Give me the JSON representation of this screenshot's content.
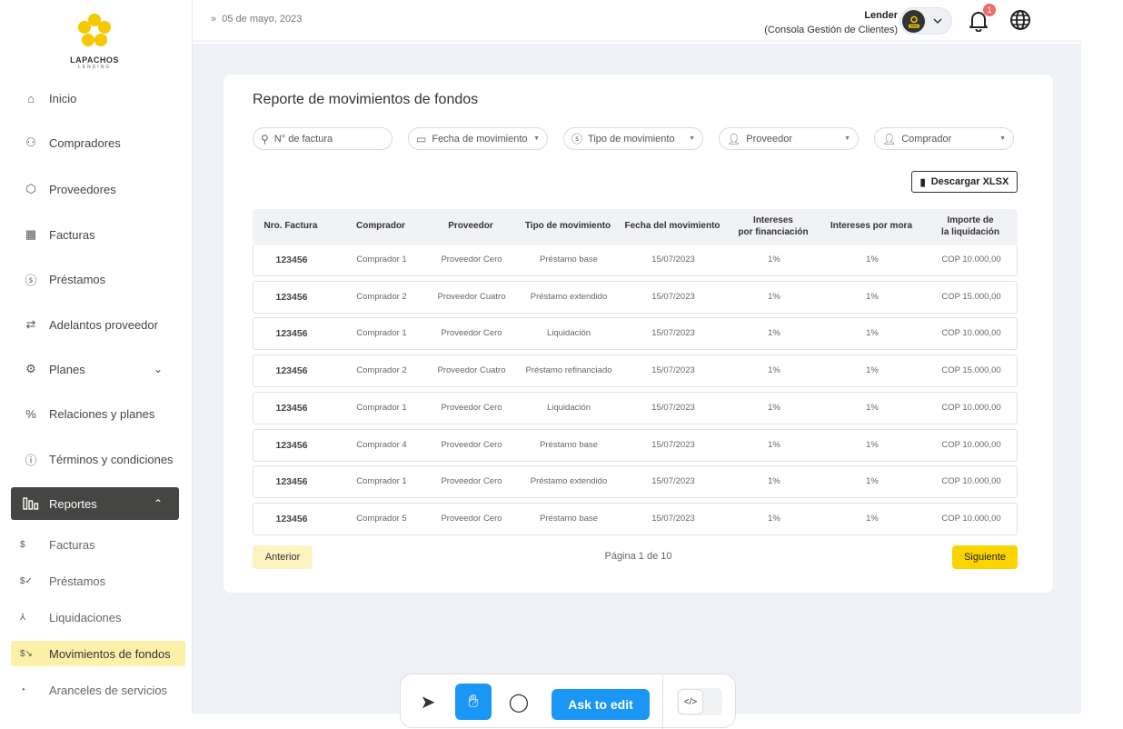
{
  "brand": {
    "name": "LAPACHOS",
    "tagline": "LENDING"
  },
  "sidebar": {
    "items": [
      {
        "label": "Inicio",
        "icon": "home-icon"
      },
      {
        "label": "Compradores",
        "icon": "users-icon"
      },
      {
        "label": "Proveedores",
        "icon": "box-icon"
      },
      {
        "label": "Facturas",
        "icon": "grid-icon"
      },
      {
        "label": "Préstamos",
        "icon": "dollar-circle-icon"
      },
      {
        "label": "Adelantos proveedor",
        "icon": "arrows-icon"
      },
      {
        "label": "Planes",
        "icon": "gear-icon"
      },
      {
        "label": "Relaciones y planes",
        "icon": "percent-icon"
      },
      {
        "label": "Términos y condiciones",
        "icon": "alert-circle-icon"
      },
      {
        "label": "Reportes",
        "icon": "bar-chart-icon"
      }
    ],
    "sub_items": [
      {
        "label": "Facturas",
        "icon": "receipt-icon"
      },
      {
        "label": "Préstamos",
        "icon": "dollar-check-icon"
      },
      {
        "label": "Liquidaciones",
        "icon": "nodes-icon"
      },
      {
        "label": "Movimientos de fondos",
        "icon": "dollar-arrow-icon"
      },
      {
        "label": "Aranceles de servicios",
        "icon": "pie-icon"
      }
    ]
  },
  "header": {
    "date": "05 de mayo, 2023",
    "user": "Lender",
    "role": "(Consola Gestión de Clientes)",
    "notifications": "1"
  },
  "report": {
    "title": "Reporte de movimientos de fondos",
    "filters": [
      "N° de factura",
      "Fecha de movimiento",
      "Tipo de movimiento",
      "Proveedor",
      "Comprador"
    ],
    "download": "Descargar XLSX",
    "columns": [
      "Nro. Factura",
      "Comprador",
      "Proveedor",
      "Tipo de movimiento",
      "Fecha del movimiento",
      "Intereses\npor financiación",
      "Intereses por mora",
      "Importe de\nla liquidación"
    ],
    "rows": [
      [
        "123456",
        "Comprador 1",
        "Proveedor Cero",
        "Préstamo base",
        "15/07/2023",
        "1%",
        "1%",
        "COP 10.000,00"
      ],
      [
        "123456",
        "Comprador 2",
        "Proveedor Cuatro",
        "Préstamo extendido",
        "15/07/2023",
        "1%",
        "1%",
        "COP 15.000,00"
      ],
      [
        "123456",
        "Comprador 1",
        "Proveedor Cero",
        "Liquidación",
        "15/07/2023",
        "1%",
        "1%",
        "COP 10.000,00"
      ],
      [
        "123456",
        "Comprador 2",
        "Proveedor Cuatro",
        "Préstamo refinanciado",
        "15/07/2023",
        "1%",
        "1%",
        "COP 15.000,00"
      ],
      [
        "123456",
        "Comprador 1",
        "Proveedor Cero",
        "Liquidación",
        "15/07/2023",
        "1%",
        "1%",
        "COP 10.000,00"
      ],
      [
        "123456",
        "Comprador 4",
        "Proveedor Cero",
        "Préstamo base",
        "15/07/2023",
        "1%",
        "1%",
        "COP 10.000,00"
      ],
      [
        "123456",
        "Comprador 1",
        "Proveedor Cero",
        "Préstamo extendido",
        "15/07/2023",
        "1%",
        "1%",
        "COP 10.000,00"
      ],
      [
        "123456",
        "Comprador 5",
        "Proveedor Cero",
        "Préstamo base",
        "15/07/2023",
        "1%",
        "1%",
        "COP 10.000,00"
      ]
    ],
    "prev": "Anterior",
    "next": "Siguiente",
    "page": "Página 1 de 10"
  },
  "toolbar": {
    "ask": "Ask to edit"
  },
  "colors": {
    "accent": "#fbd400",
    "active_nav": "#454544",
    "selected_sub": "#fdf0a8",
    "toolbar_blue": "#1a96f5"
  }
}
